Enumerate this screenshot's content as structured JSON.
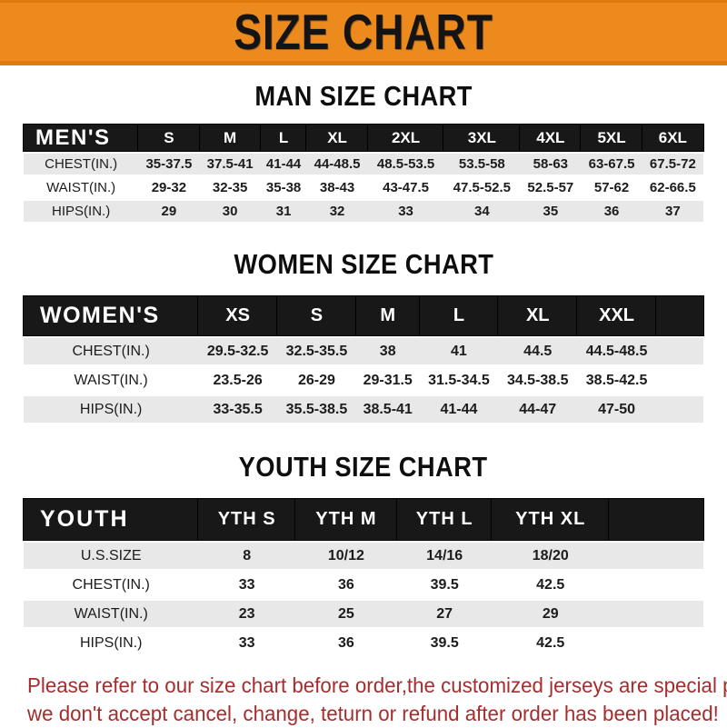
{
  "theme": {
    "banner_bg": "#EC8A1E",
    "banner_border": "#DD7B10",
    "header_bar": "#181818",
    "row_stripe": "#E8E8E8",
    "note_red": "#A52D2D",
    "text": "#1A1A1A"
  },
  "banner": {
    "title": "SIZE CHART"
  },
  "sections": [
    {
      "heading": "MAN SIZE CHART",
      "table": {
        "label": "MEN'S",
        "columns": [
          "S",
          "M",
          "L",
          "XL",
          "2XL",
          "3XL",
          "4XL",
          "5XL",
          "6XL"
        ],
        "spacer": false,
        "rows": [
          {
            "label": "CHEST(IN.)",
            "values": [
              "35-37.5",
              "37.5-41",
              "41-44",
              "44-48.5",
              "48.5-53.5",
              "53.5-58",
              "58-63",
              "63-67.5",
              "67.5-72"
            ]
          },
          {
            "label": "WAIST(IN.)",
            "values": [
              "29-32",
              "32-35",
              "35-38",
              "38-43",
              "43-47.5",
              "47.5-52.5",
              "52.5-57",
              "57-62",
              "62-66.5"
            ]
          },
          {
            "label": "HIPS(IN.)",
            "values": [
              "29",
              "30",
              "31",
              "32",
              "33",
              "34",
              "35",
              "36",
              "37"
            ]
          }
        ]
      }
    },
    {
      "heading": "WOMEN SIZE CHART",
      "table": {
        "label": "WOMEN'S",
        "columns": [
          "XS",
          "S",
          "M",
          "L",
          "XL",
          "XXL"
        ],
        "spacer": true,
        "rows": [
          {
            "label": "CHEST(IN.)",
            "values": [
              "29.5-32.5",
              "32.5-35.5",
              "38",
              "41",
              "44.5",
              "44.5-48.5"
            ]
          },
          {
            "label": "WAIST(IN.)",
            "values": [
              "23.5-26",
              "26-29",
              "29-31.5",
              "31.5-34.5",
              "34.5-38.5",
              "38.5-42.5"
            ]
          },
          {
            "label": "HIPS(IN.)",
            "values": [
              "33-35.5",
              "35.5-38.5",
              "38.5-41",
              "41-44",
              "44-47",
              "47-50"
            ]
          }
        ]
      }
    },
    {
      "heading": "YOUTH SIZE CHART",
      "table": {
        "label": "YOUTH",
        "columns": [
          "YTH S",
          "YTH M",
          "YTH L",
          "YTH XL"
        ],
        "spacer": true,
        "rows": [
          {
            "label": "U.S.SIZE",
            "values": [
              "8",
              "10/12",
              "14/16",
              "18/20"
            ]
          },
          {
            "label": "CHEST(IN.)",
            "values": [
              "33",
              "36",
              "39.5",
              "42.5"
            ]
          },
          {
            "label": "WAIST(IN.)",
            "values": [
              "23",
              "25",
              "27",
              "29"
            ]
          },
          {
            "label": "HIPS(IN.)",
            "values": [
              "33",
              "36",
              "39.5",
              "42.5"
            ]
          }
        ]
      }
    }
  ],
  "footer": {
    "line1": "Please refer to our size chart before order,the customized jerseys are special products,",
    "line2": "we don't accept cancel, change, teturn or refund after order has been placed!"
  }
}
